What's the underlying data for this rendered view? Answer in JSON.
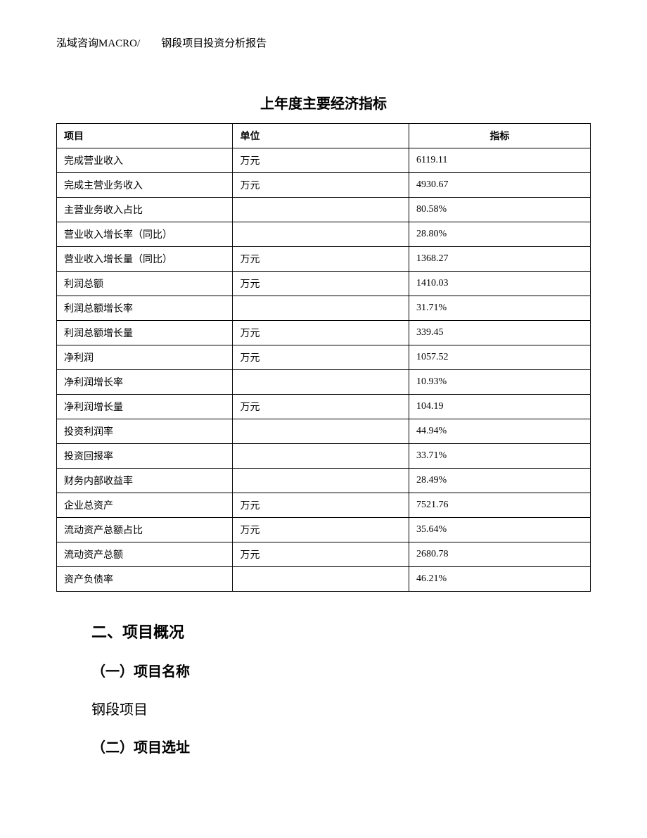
{
  "header": {
    "company": "泓域咨询MACRO/",
    "doc_title": "钢段项目投资分析报告"
  },
  "table": {
    "title": "上年度主要经济指标",
    "columns": [
      "项目",
      "单位",
      "指标"
    ],
    "rows": [
      {
        "item": "完成营业收入",
        "unit": "万元",
        "metric": "6119.11"
      },
      {
        "item": "完成主营业务收入",
        "unit": "万元",
        "metric": "4930.67"
      },
      {
        "item": "主营业务收入占比",
        "unit": "",
        "metric": "80.58%"
      },
      {
        "item": "营业收入增长率（同比）",
        "unit": "",
        "metric": "28.80%"
      },
      {
        "item": "营业收入增长量（同比）",
        "unit": "万元",
        "metric": "1368.27"
      },
      {
        "item": "利润总额",
        "unit": "万元",
        "metric": "1410.03"
      },
      {
        "item": "利润总额增长率",
        "unit": "",
        "metric": "31.71%"
      },
      {
        "item": "利润总额增长量",
        "unit": "万元",
        "metric": "339.45"
      },
      {
        "item": "净利润",
        "unit": "万元",
        "metric": "1057.52"
      },
      {
        "item": "净利润增长率",
        "unit": "",
        "metric": "10.93%"
      },
      {
        "item": "净利润增长量",
        "unit": "万元",
        "metric": "104.19"
      },
      {
        "item": "投资利润率",
        "unit": "",
        "metric": "44.94%"
      },
      {
        "item": "投资回报率",
        "unit": "",
        "metric": "33.71%"
      },
      {
        "item": "财务内部收益率",
        "unit": "",
        "metric": "28.49%"
      },
      {
        "item": "企业总资产",
        "unit": "万元",
        "metric": "7521.76"
      },
      {
        "item": "流动资产总额占比",
        "unit": "万元",
        "metric": "35.64%"
      },
      {
        "item": "流动资产总额",
        "unit": "万元",
        "metric": "2680.78"
      },
      {
        "item": "资产负债率",
        "unit": "",
        "metric": "46.21%"
      }
    ]
  },
  "sections": {
    "heading2": "二、项目概况",
    "sub1": "（一）项目名称",
    "body1": "钢段项目",
    "sub2": "（二）项目选址"
  }
}
